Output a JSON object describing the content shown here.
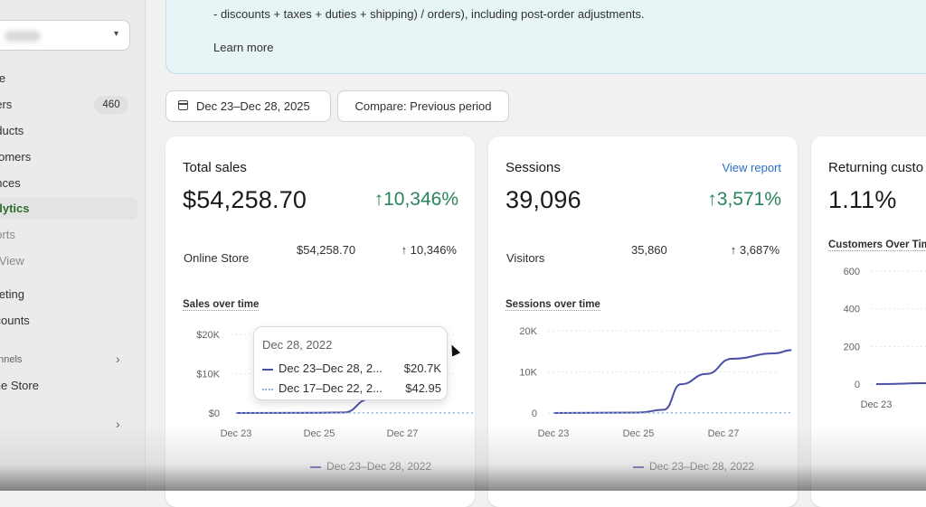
{
  "sidebar": {
    "store_chevron": "▾",
    "items": [
      {
        "label": "me"
      },
      {
        "label": "ders"
      },
      {
        "label": "oducts"
      },
      {
        "label": "stomers"
      },
      {
        "label": "ances"
      },
      {
        "label": "alytics"
      },
      {
        "label": "ports"
      },
      {
        "label": "e View"
      },
      {
        "label": "rketing"
      },
      {
        "label": "scounts"
      }
    ],
    "orders_badge": "460",
    "channels_label": "annels",
    "online_store": "line Store",
    "arrow": "›",
    "accent_color": "#2c6e2c"
  },
  "banner": {
    "text": "- discounts + taxes + duties + shipping) / orders), including post-order adjustments.",
    "learn_more": "Learn more"
  },
  "toolbar": {
    "date_range": "Dec 23–Dec 28, 2025",
    "compare": "Compare: Previous period"
  },
  "cards": {
    "sales": {
      "title": "Total sales",
      "value": "$54,258.70",
      "change": "↑10,346%",
      "row_label": "Online Store",
      "row_value": "$54,258.70",
      "row_change": "↑ 10,346%",
      "chart_title": "Sales over time",
      "legend": "Dec 23–Dec 28, 2022",
      "tooltip": {
        "title": "Dec 28, 2022",
        "row1_label": "Dec 23–Dec 28, 2...",
        "row1_value": "$20.7K",
        "row2_label": "Dec 17–Dec 22, 2...",
        "row2_value": "$42.95"
      }
    },
    "sessions": {
      "title": "Sessions",
      "link": "View report",
      "value": "39,096",
      "change": "↑3,571%",
      "row_label": "Visitors",
      "row_value": "35,860",
      "row_change": "↑ 3,687%",
      "chart_title": "Sessions over time",
      "legend": "Dec 23–Dec 28, 2022"
    },
    "returning": {
      "title": "Returning custo",
      "value": "1.11%",
      "chart_title": "Customers Over Tim"
    }
  },
  "colors": {
    "positive": "#29845a",
    "series": "#4b4fa6",
    "compare_series": "#8fb3d9",
    "link": "#2c6ecb"
  },
  "chart_data": [
    {
      "type": "line",
      "title": "Sales over time",
      "x": [
        "Dec 23",
        "Dec 25",
        "Dec 27"
      ],
      "y_ticks": [
        "$0",
        "$10K",
        "$20K"
      ],
      "ylim": [
        0,
        20000
      ],
      "series": [
        {
          "name": "Dec 23–Dec 28, 2022",
          "points": [
            [
              0,
              0
            ],
            [
              1,
              60
            ],
            [
              1.3,
              150
            ],
            [
              1.6,
              3500
            ]
          ]
        },
        {
          "name": "Dec 17–Dec 22, 2022",
          "points": [
            [
              0,
              0
            ],
            [
              2,
              20
            ],
            [
              3,
              40
            ],
            [
              3.3,
              42.95
            ]
          ]
        }
      ]
    },
    {
      "type": "line",
      "title": "Sessions over time",
      "x": [
        "Dec 23",
        "Dec 25",
        "Dec 27"
      ],
      "y_ticks": [
        "0",
        "10K",
        "20K"
      ],
      "ylim": [
        0,
        20000
      ],
      "series": [
        {
          "name": "Dec 23–Dec 28, 2022",
          "points": [
            [
              0,
              0
            ],
            [
              1,
              100
            ],
            [
              1.3,
              800
            ],
            [
              1.5,
              7000
            ],
            [
              1.8,
              9500
            ],
            [
              2.1,
              13200
            ],
            [
              2.6,
              14500
            ],
            [
              2.8,
              15300
            ]
          ]
        },
        {
          "name": "",
          "points": [
            [
              0,
              0
            ],
            [
              2.8,
              60
            ]
          ]
        }
      ]
    },
    {
      "type": "line",
      "title": "Customers Over Tim",
      "x": [
        "Dec 23"
      ],
      "y_ticks": [
        "0",
        "200",
        "400",
        "600"
      ],
      "ylim": [
        0,
        600
      ],
      "series": [
        {
          "name": "",
          "points": [
            [
              0,
              0
            ],
            [
              1,
              5
            ],
            [
              1.5,
              10
            ]
          ]
        }
      ]
    }
  ]
}
